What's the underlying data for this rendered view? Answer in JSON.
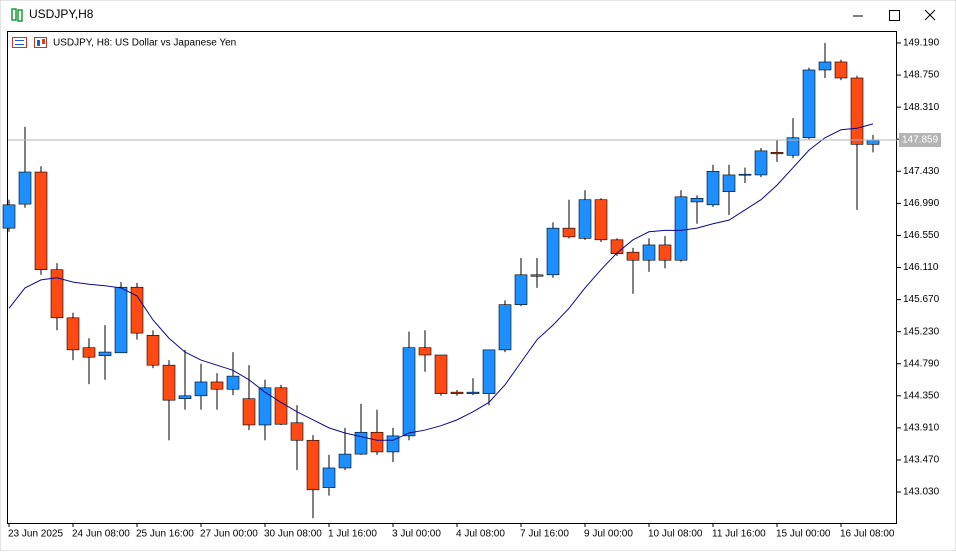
{
  "window": {
    "title": "USDJPY,H8"
  },
  "chart_data": {
    "type": "candlestick",
    "title": "USDJPY, H8:  US Dollar vs Japanese Yen",
    "categories": [
      "23 Jun 2025",
      null,
      null,
      null,
      "24 Jun 08:00",
      null,
      null,
      null,
      "25 Jun 16:00",
      null,
      null,
      null,
      "27 Jun 00:00",
      null,
      null,
      null,
      "30 Jun 08:00",
      null,
      null,
      null,
      "1 Jul 16:00",
      null,
      null,
      null,
      "3 Jul 00:00",
      null,
      null,
      null,
      "4 Jul 08:00",
      null,
      null,
      null,
      "7 Jul 16:00",
      null,
      null,
      null,
      "9 Jul 00:00",
      null,
      null,
      null,
      "10 Jul 08:00",
      null,
      null,
      null,
      "11 Jul 16:00",
      null,
      null,
      null,
      "15 Jul 00:00",
      null,
      null,
      null,
      "16 Jul 08:00",
      null,
      null
    ],
    "open": [
      146.65,
      146.98,
      147.42,
      146.08,
      145.42,
      145.01,
      144.9,
      144.94,
      145.84,
      145.18,
      144.77,
      144.31,
      144.35,
      144.54,
      144.44,
      144.31,
      143.95,
      144.46,
      143.98,
      143.74,
      143.09,
      143.36,
      143.55,
      143.85,
      143.58,
      143.8,
      145.01,
      144.91,
      144.4,
      144.38,
      144.38,
      144.98,
      145.6,
      145.99,
      146.01,
      146.65,
      146.51,
      147.04,
      146.49,
      146.32,
      146.21,
      146.42,
      146.21,
      147.01,
      146.97,
      147.15,
      147.38,
      147.38,
      147.69,
      147.65,
      147.89,
      148.82,
      148.93,
      148.71,
      147.8
    ],
    "high": [
      147.04,
      148.04,
      147.5,
      146.17,
      145.49,
      145.14,
      145.32,
      145.91,
      145.9,
      145.25,
      144.84,
      144.98,
      144.79,
      144.66,
      144.95,
      144.77,
      144.57,
      144.5,
      144.22,
      143.81,
      143.54,
      143.91,
      144.24,
      144.16,
      143.91,
      145.23,
      145.25,
      144.91,
      144.43,
      144.59,
      144.98,
      145.66,
      146.24,
      146.24,
      146.73,
      147.04,
      147.17,
      147.06,
      146.51,
      146.38,
      146.51,
      146.54,
      147.17,
      147.1,
      147.52,
      147.52,
      147.48,
      147.75,
      147.86,
      148.16,
      148.85,
      149.19,
      148.96,
      148.74,
      147.93
    ],
    "low": [
      146.6,
      146.93,
      146.01,
      145.25,
      144.84,
      144.51,
      144.57,
      144.94,
      145.12,
      144.73,
      143.74,
      144.16,
      144.16,
      144.16,
      144.36,
      143.88,
      143.74,
      143.95,
      143.33,
      142.67,
      142.98,
      143.33,
      143.54,
      143.54,
      143.44,
      143.74,
      144.68,
      144.35,
      144.35,
      144.36,
      144.22,
      144.95,
      145.58,
      145.83,
      145.97,
      146.51,
      146.49,
      146.46,
      146.27,
      145.75,
      146.05,
      146.1,
      146.19,
      146.71,
      146.94,
      146.83,
      147.27,
      147.35,
      147.56,
      147.61,
      147.87,
      148.71,
      148.68,
      146.9,
      147.69
    ],
    "close": [
      146.97,
      147.42,
      146.08,
      145.42,
      144.98,
      144.88,
      144.95,
      145.84,
      145.21,
      144.77,
      144.29,
      144.35,
      144.54,
      144.44,
      144.62,
      143.95,
      144.46,
      143.96,
      143.74,
      143.06,
      143.36,
      143.55,
      143.85,
      143.58,
      143.8,
      145.01,
      144.91,
      144.38,
      144.38,
      144.4,
      144.98,
      145.6,
      146.01,
      146.01,
      146.65,
      146.53,
      147.04,
      146.49,
      146.3,
      146.21,
      146.42,
      146.21,
      147.08,
      147.06,
      147.43,
      147.38,
      147.39,
      147.71,
      147.67,
      147.89,
      148.82,
      148.93,
      148.71,
      147.8,
      147.859
    ],
    "up_color": "#1e8fff",
    "down_color": "#ff4a14",
    "overlay": {
      "color": "#0a0a8c",
      "values": [
        145.55,
        145.83,
        145.94,
        145.97,
        145.91,
        145.88,
        145.86,
        145.83,
        145.72,
        145.39,
        145.14,
        144.95,
        144.84,
        144.77,
        144.7,
        144.57,
        144.4,
        144.26,
        144.13,
        144.02,
        143.91,
        143.84,
        143.79,
        143.74,
        143.74,
        143.84,
        143.88,
        143.94,
        144.02,
        144.13,
        144.26,
        144.5,
        144.81,
        145.12,
        145.32,
        145.55,
        145.83,
        146.08,
        146.31,
        146.49,
        146.6,
        146.62,
        146.62,
        146.65,
        146.71,
        146.76,
        146.9,
        147.04,
        147.24,
        147.48,
        147.72,
        147.89,
        148.0,
        148.02,
        148.08
      ]
    },
    "ylim": [
      142.605,
      149.341
    ],
    "yticks": [
      {
        "value": 149.19,
        "label": "149.190"
      },
      {
        "value": 148.75,
        "label": "148.750"
      },
      {
        "value": 148.31,
        "label": "148.310"
      },
      {
        "value": 147.87,
        "label": "147.870"
      },
      {
        "value": 147.43,
        "label": "147.430"
      },
      {
        "value": 146.99,
        "label": "146.990"
      },
      {
        "value": 146.55,
        "label": "146.550"
      },
      {
        "value": 146.11,
        "label": "146.110"
      },
      {
        "value": 145.67,
        "label": "145.670"
      },
      {
        "value": 145.23,
        "label": "145.230"
      },
      {
        "value": 144.79,
        "label": "144.790"
      },
      {
        "value": 144.35,
        "label": "144.350"
      },
      {
        "value": 143.91,
        "label": "143.910"
      },
      {
        "value": 143.47,
        "label": "143.470"
      },
      {
        "value": 143.03,
        "label": "143.030"
      }
    ],
    "grid": false
  }
}
